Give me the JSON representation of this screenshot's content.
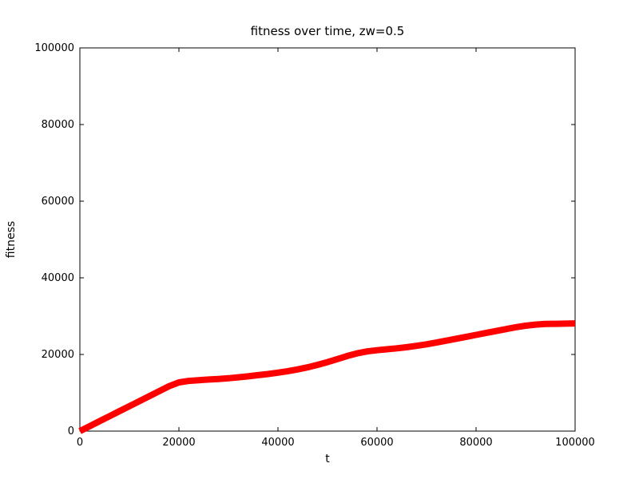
{
  "figure": {
    "background": "#ffffff",
    "frame_color": "#000000"
  },
  "chart_data": {
    "type": "line",
    "title": "fitness over time, zw=0.5",
    "xlabel": "t",
    "ylabel": "fitness",
    "xlim": [
      0,
      100000
    ],
    "ylim": [
      0,
      100000
    ],
    "xticks": [
      0,
      20000,
      40000,
      60000,
      80000,
      100000
    ],
    "yticks": [
      0,
      20000,
      40000,
      60000,
      80000,
      100000
    ],
    "grid": false,
    "legend_position": "none",
    "series": [
      {
        "name": "fitness",
        "color": "#ff0000",
        "marker": "x-dense-band",
        "points": [
          [
            0,
            0
          ],
          [
            2000,
            1300
          ],
          [
            4000,
            2600
          ],
          [
            6000,
            3900
          ],
          [
            8000,
            5200
          ],
          [
            10000,
            6500
          ],
          [
            12000,
            7800
          ],
          [
            14000,
            9100
          ],
          [
            16000,
            10400
          ],
          [
            18000,
            11700
          ],
          [
            20000,
            12700
          ],
          [
            22000,
            13100
          ],
          [
            24000,
            13300
          ],
          [
            26000,
            13450
          ],
          [
            28000,
            13600
          ],
          [
            30000,
            13800
          ],
          [
            32000,
            14050
          ],
          [
            34000,
            14300
          ],
          [
            36000,
            14600
          ],
          [
            38000,
            14900
          ],
          [
            40000,
            15250
          ],
          [
            42000,
            15650
          ],
          [
            44000,
            16100
          ],
          [
            46000,
            16650
          ],
          [
            48000,
            17300
          ],
          [
            50000,
            18000
          ],
          [
            52000,
            18800
          ],
          [
            54000,
            19600
          ],
          [
            56000,
            20300
          ],
          [
            58000,
            20800
          ],
          [
            60000,
            21100
          ],
          [
            62000,
            21350
          ],
          [
            64000,
            21600
          ],
          [
            66000,
            21900
          ],
          [
            68000,
            22250
          ],
          [
            70000,
            22650
          ],
          [
            72000,
            23100
          ],
          [
            74000,
            23600
          ],
          [
            76000,
            24100
          ],
          [
            78000,
            24600
          ],
          [
            80000,
            25100
          ],
          [
            82000,
            25600
          ],
          [
            84000,
            26100
          ],
          [
            86000,
            26600
          ],
          [
            88000,
            27100
          ],
          [
            90000,
            27500
          ],
          [
            92000,
            27800
          ],
          [
            94000,
            27950
          ],
          [
            96000,
            28000
          ],
          [
            98000,
            28050
          ],
          [
            100000,
            28100
          ]
        ]
      }
    ]
  }
}
